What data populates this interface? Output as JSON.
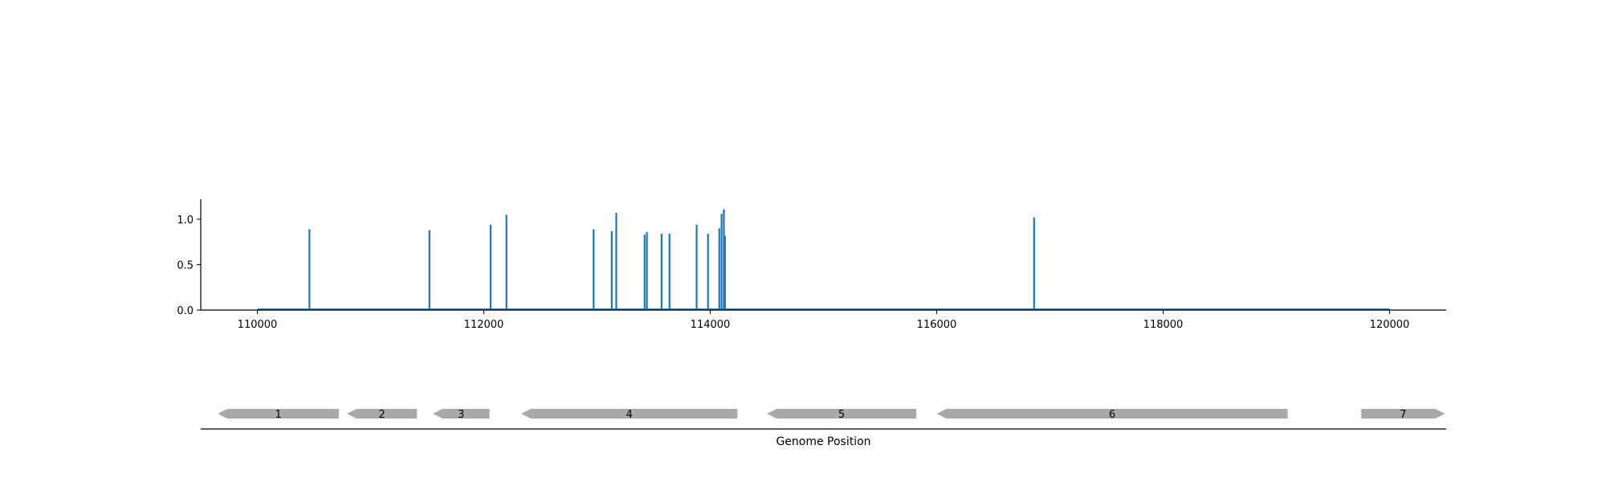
{
  "chart_data": [
    {
      "type": "bar",
      "title": "",
      "xlabel": "",
      "ylabel": "",
      "xlim": [
        109500,
        120500
      ],
      "ylim": [
        0,
        1.22
      ],
      "xticks": [
        110000,
        112000,
        114000,
        116000,
        118000,
        120000
      ],
      "xtick_labels": [
        "110000",
        "112000",
        "114000",
        "116000",
        "118000",
        "120000"
      ],
      "yticks": [
        0.0,
        0.5,
        1.0
      ],
      "ytick_labels": [
        "0.0",
        "0.5",
        "1.0"
      ],
      "baseline_range": [
        110000,
        120000
      ],
      "color": "#1f77b4",
      "x": [
        110460,
        111520,
        112060,
        112200,
        112970,
        113130,
        113170,
        113420,
        113440,
        113570,
        113640,
        113880,
        113980,
        114080,
        114100,
        114120,
        114130,
        116860
      ],
      "values": [
        0.89,
        0.88,
        0.94,
        1.05,
        0.89,
        0.87,
        1.07,
        0.83,
        0.86,
        0.84,
        0.84,
        0.94,
        0.84,
        0.9,
        1.06,
        1.11,
        0.82,
        1.02
      ]
    },
    {
      "type": "gene-track",
      "xlabel": "Genome Position",
      "xlim": [
        109500,
        120500
      ],
      "color": "#a9a9a9",
      "genes": [
        {
          "label": "1",
          "start": 109650,
          "end": 110720,
          "strand": "-"
        },
        {
          "label": "2",
          "start": 110790,
          "end": 111410,
          "strand": "-"
        },
        {
          "label": "3",
          "start": 111550,
          "end": 112050,
          "strand": "-"
        },
        {
          "label": "4",
          "start": 112330,
          "end": 114240,
          "strand": "-"
        },
        {
          "label": "5",
          "start": 114500,
          "end": 115820,
          "strand": "-"
        },
        {
          "label": "6",
          "start": 116000,
          "end": 119100,
          "strand": "-"
        },
        {
          "label": "7",
          "start": 119750,
          "end": 120490,
          "strand": "+"
        }
      ]
    }
  ]
}
